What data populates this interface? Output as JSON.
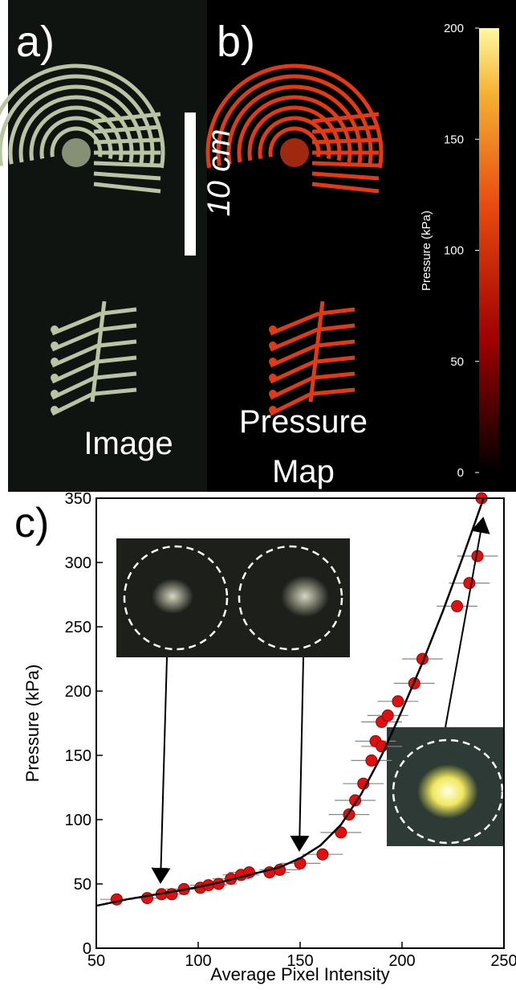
{
  "panels": {
    "a": {
      "label": "a)",
      "caption": "Image",
      "scale_bar": "10 cm"
    },
    "b": {
      "label": "b)",
      "caption": [
        "Pressure",
        "Map"
      ],
      "colorbar": {
        "label": "Pressure (kPa)",
        "lim": [
          0,
          200
        ],
        "ticks": [
          0,
          50,
          100,
          150,
          200
        ]
      }
    }
  },
  "chart_data": {
    "type": "scatter",
    "label": "c)",
    "x_label": "Average Pixel Intensity",
    "y_label": "Pressure (kPa)",
    "xlim": [
      50,
      250
    ],
    "ylim": [
      0,
      350
    ],
    "xticks": [
      50,
      100,
      150,
      200,
      250
    ],
    "yticks": [
      0,
      50,
      100,
      150,
      200,
      250,
      300,
      350
    ],
    "series": [
      {
        "color": "#e01010",
        "x": [
          60,
          75,
          82,
          87,
          93,
          101,
          105,
          110,
          116,
          121,
          125,
          135,
          140,
          150,
          161,
          170,
          174,
          177,
          181,
          185,
          187,
          190,
          190,
          193,
          198,
          206,
          210,
          227,
          233,
          237,
          239
        ],
        "values": [
          38,
          39,
          42,
          42,
          46,
          47,
          49,
          50,
          54,
          57,
          59,
          59,
          61,
          66,
          73,
          90,
          104,
          115,
          128,
          146,
          161,
          176,
          157,
          181,
          192,
          206,
          225,
          266,
          284,
          305,
          350
        ],
        "x_errors": [
          8,
          8,
          8,
          8,
          9,
          9,
          9,
          9,
          9,
          9,
          10,
          10,
          10,
          10,
          10,
          10,
          10,
          10,
          10,
          10,
          10,
          10,
          10,
          10,
          10,
          10,
          10,
          10,
          10,
          10,
          10
        ]
      },
      {
        "type": "line",
        "color": "#000000",
        "x": [
          50,
          65,
          80,
          95,
          110,
          125,
          140,
          150,
          160,
          170,
          180,
          190,
          200,
          210,
          220,
          230,
          240
        ],
        "values": [
          33,
          38,
          42,
          46,
          51,
          57,
          63,
          70,
          80,
          96,
          120,
          150,
          185,
          222,
          262,
          305,
          350
        ]
      }
    ]
  }
}
